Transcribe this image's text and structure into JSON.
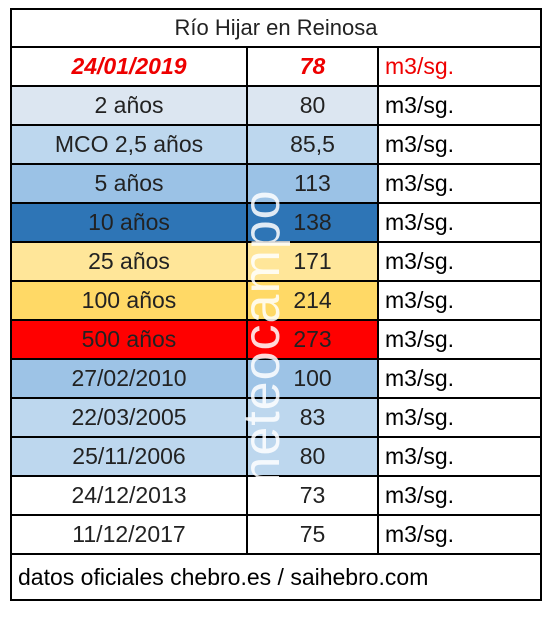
{
  "table": {
    "title": "Río Hijar en Reinosa",
    "rows": [
      [
        "24/01/2019",
        "78",
        "m3/sg."
      ],
      [
        "2 años",
        "80",
        "m3/sg."
      ],
      [
        "MCO 2,5 años",
        "85,5",
        "m3/sg."
      ],
      [
        "5 años",
        "113",
        "m3/sg."
      ],
      [
        "10 años",
        "138",
        "m3/sg."
      ],
      [
        "25 años",
        "171",
        "m3/sg."
      ],
      [
        "100 años",
        "214",
        "m3/sg."
      ],
      [
        "500 años",
        "273",
        "m3/sg."
      ],
      [
        "27/02/2010",
        "100",
        "m3/sg."
      ],
      [
        "22/03/2005",
        "83",
        "m3/sg."
      ],
      [
        "25/11/2006",
        "80",
        "m3/sg."
      ],
      [
        "24/12/2013",
        "73",
        "m3/sg."
      ],
      [
        "11/12/2017",
        "75",
        "m3/sg."
      ]
    ],
    "footer": "datos oficiales chebro.es / saihebro.com"
  },
  "watermark": "meteocampo"
}
